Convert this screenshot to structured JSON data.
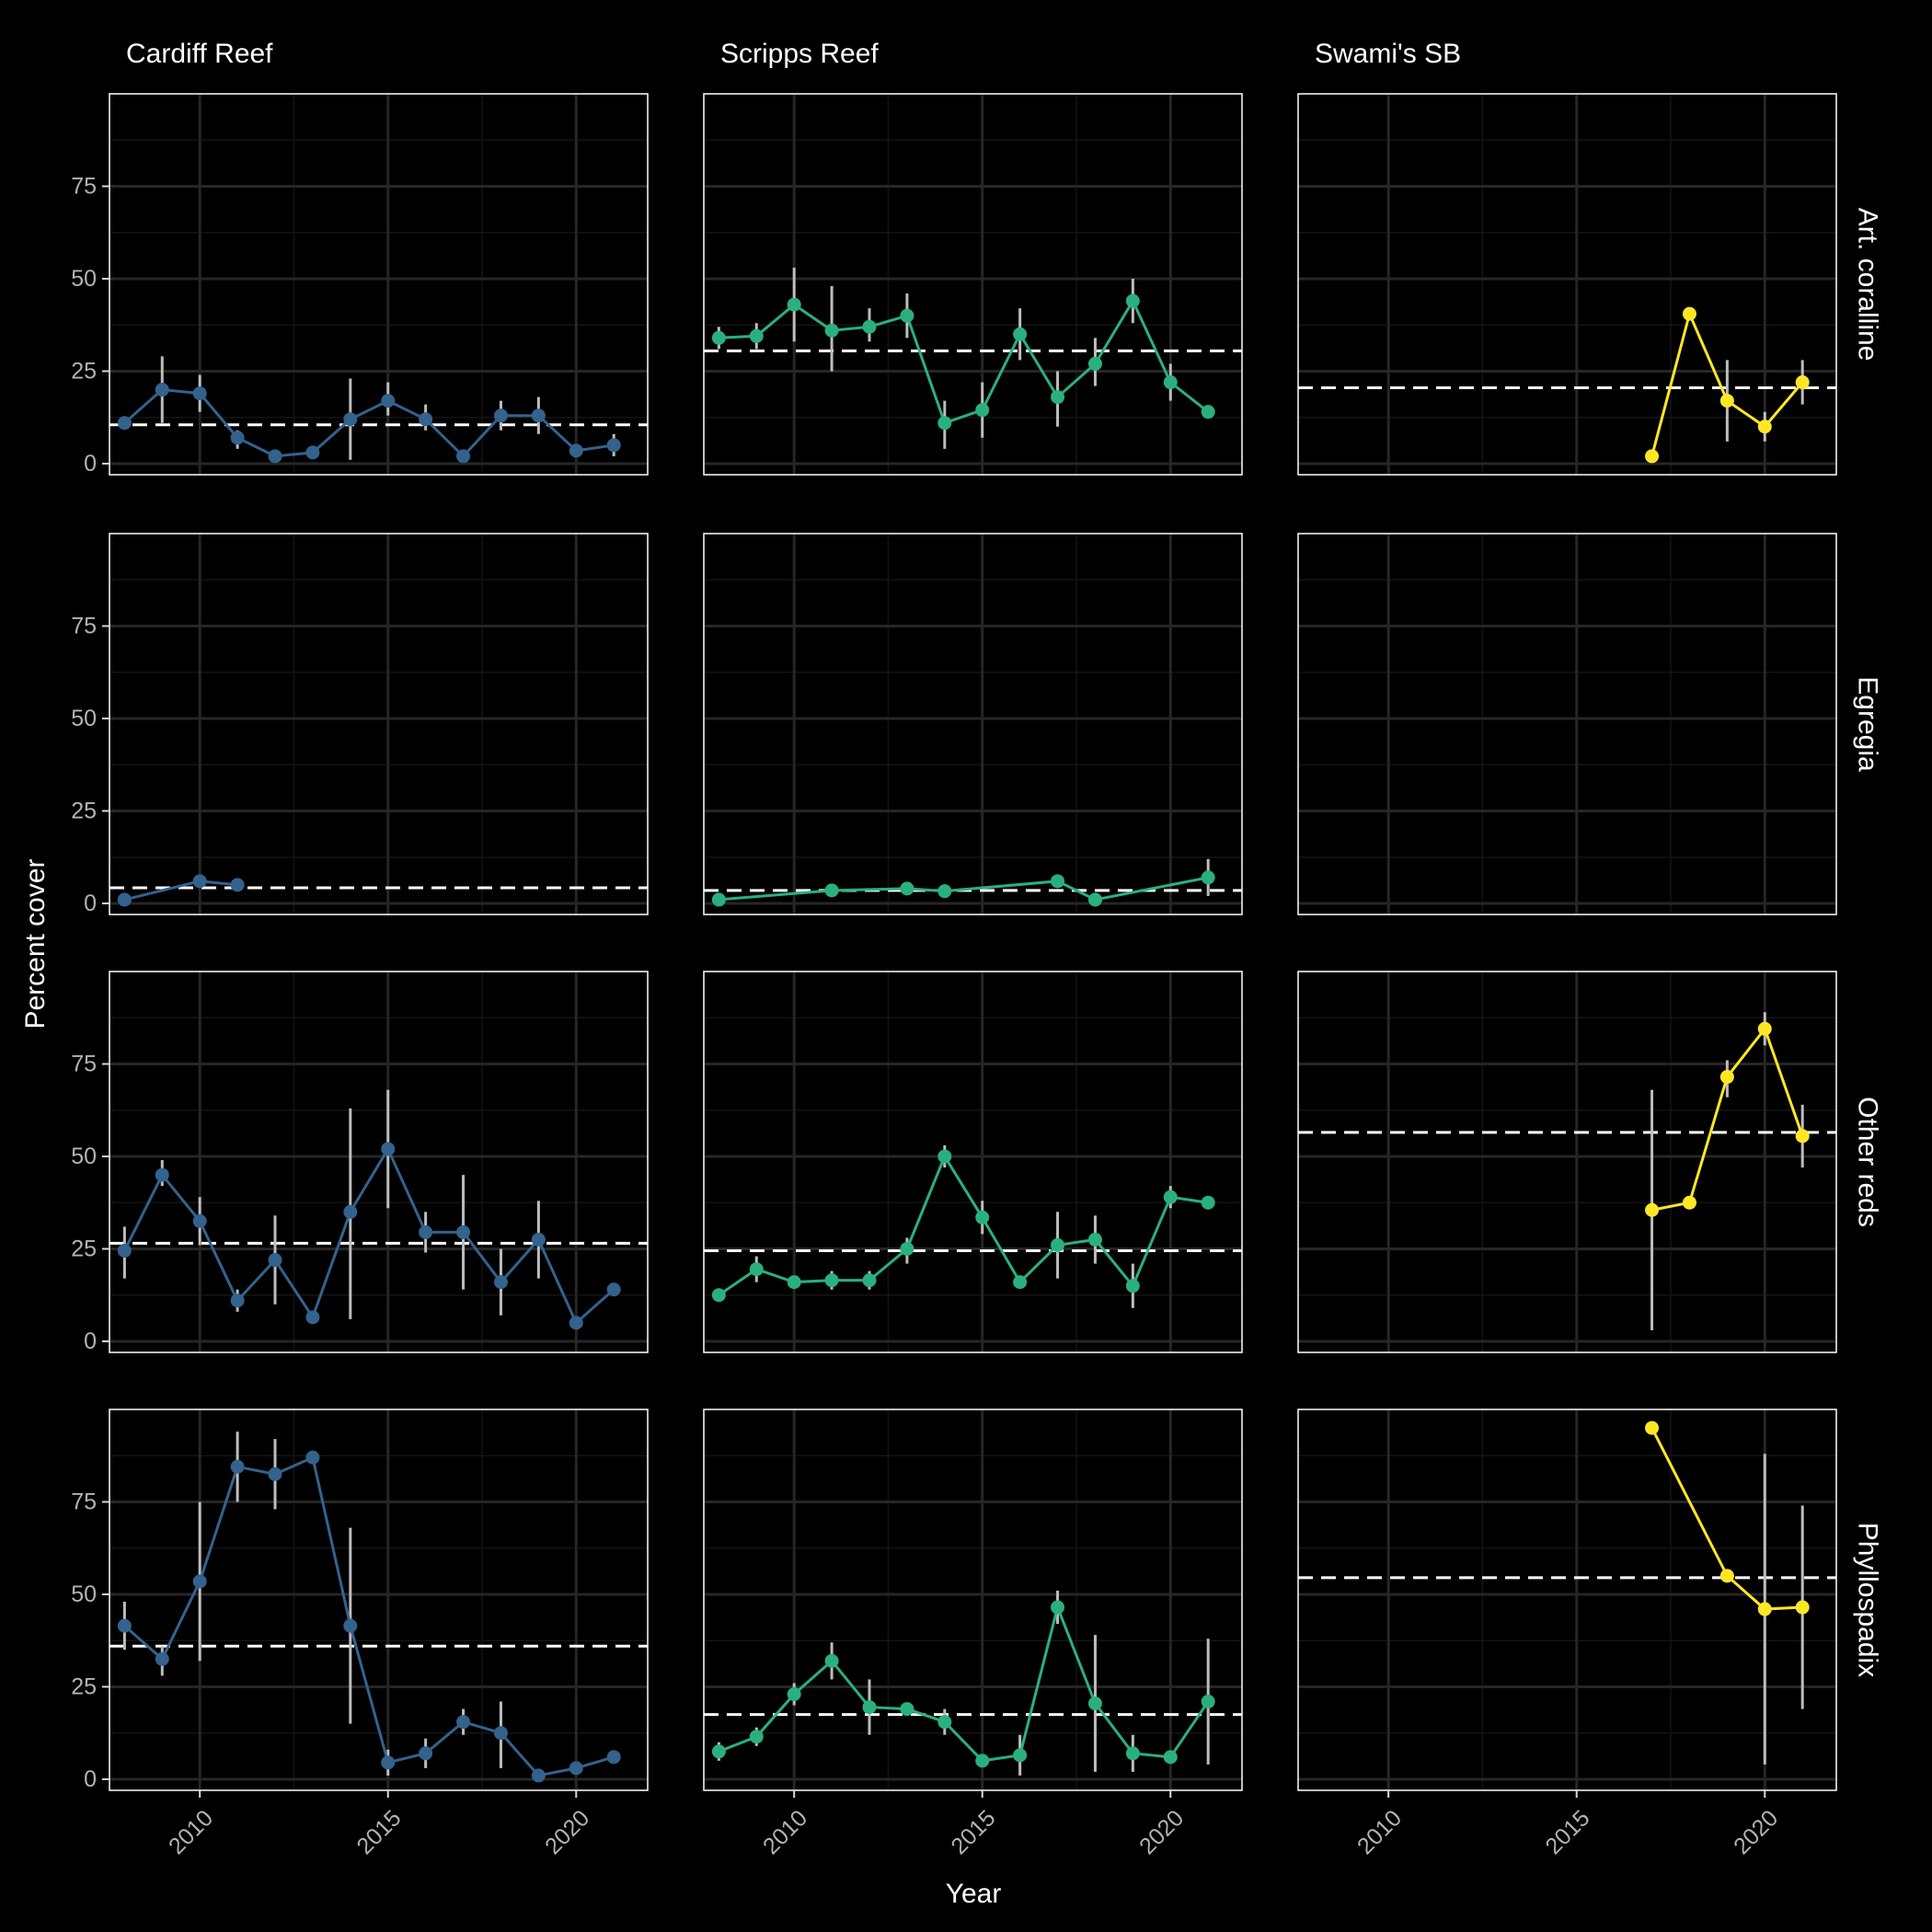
{
  "chart_data": {
    "type": "line",
    "xlabel": "Year",
    "ylabel": "Percent cover",
    "xlim": [
      2007.6,
      2021.9
    ],
    "ylim": [
      -3,
      100
    ],
    "x_ticks": [
      2010,
      2015,
      2020
    ],
    "y_ticks": [
      0,
      25,
      50,
      75
    ],
    "grid": true,
    "legend": "none",
    "columns": [
      "Cardiff Reef",
      "Scripps Reef",
      "Swami's SB"
    ],
    "rows": [
      "Art. coralline",
      "Egregia",
      "Other reds",
      "Phyllospadix"
    ],
    "colors": {
      "Cardiff Reef": "#33628d",
      "Scripps Reef": "#2ab07f",
      "Swami's SB": "#fde725"
    },
    "panels": [
      {
        "row": "Art. coralline",
        "col": "Cardiff Reef",
        "mean": 10.5,
        "points": [
          {
            "x": 2008,
            "y": 11,
            "lo": 11,
            "hi": 11
          },
          {
            "x": 2009,
            "y": 20,
            "lo": 11,
            "hi": 29
          },
          {
            "x": 2010,
            "y": 19,
            "lo": 14,
            "hi": 24
          },
          {
            "x": 2011,
            "y": 7,
            "lo": 4,
            "hi": 9
          },
          {
            "x": 2012,
            "y": 2,
            "lo": 2,
            "hi": 2
          },
          {
            "x": 2013,
            "y": 3,
            "lo": 3,
            "hi": 3
          },
          {
            "x": 2014,
            "y": 12,
            "lo": 1,
            "hi": 23
          },
          {
            "x": 2015,
            "y": 17,
            "lo": 13,
            "hi": 22
          },
          {
            "x": 2016,
            "y": 12,
            "lo": 9,
            "hi": 16
          },
          {
            "x": 2017,
            "y": 2,
            "lo": 2,
            "hi": 2
          },
          {
            "x": 2018,
            "y": 13,
            "lo": 9,
            "hi": 17
          },
          {
            "x": 2019,
            "y": 13,
            "lo": 8,
            "hi": 18
          },
          {
            "x": 2020,
            "y": 3.5,
            "lo": 2,
            "hi": 5
          },
          {
            "x": 2021,
            "y": 5,
            "lo": 2,
            "hi": 8
          }
        ]
      },
      {
        "row": "Art. coralline",
        "col": "Scripps Reef",
        "mean": 30.5,
        "points": [
          {
            "x": 2008,
            "y": 34,
            "lo": 31,
            "hi": 37
          },
          {
            "x": 2009,
            "y": 34.5,
            "lo": 31,
            "hi": 38
          },
          {
            "x": 2010,
            "y": 43,
            "lo": 33,
            "hi": 53
          },
          {
            "x": 2011,
            "y": 36,
            "lo": 25,
            "hi": 48
          },
          {
            "x": 2012,
            "y": 37,
            "lo": 33,
            "hi": 42
          },
          {
            "x": 2013,
            "y": 40,
            "lo": 34,
            "hi": 46
          },
          {
            "x": 2014,
            "y": 11,
            "lo": 4,
            "hi": 17
          },
          {
            "x": 2015,
            "y": 14.5,
            "lo": 7,
            "hi": 22
          },
          {
            "x": 2016,
            "y": 35,
            "lo": 28,
            "hi": 42
          },
          {
            "x": 2017,
            "y": 18,
            "lo": 10,
            "hi": 25
          },
          {
            "x": 2018,
            "y": 27,
            "lo": 21,
            "hi": 34
          },
          {
            "x": 2019,
            "y": 44,
            "lo": 38,
            "hi": 50
          },
          {
            "x": 2020,
            "y": 22,
            "lo": 17,
            "hi": 27
          },
          {
            "x": 2021,
            "y": 14,
            "lo": 13,
            "hi": 15
          }
        ]
      },
      {
        "row": "Art. coralline",
        "col": "Swami's SB",
        "mean": 20.5,
        "points": [
          {
            "x": 2017,
            "y": 2,
            "lo": 2,
            "hi": 2
          },
          {
            "x": 2018,
            "y": 40.5,
            "lo": 40.5,
            "hi": 40.5
          },
          {
            "x": 2019,
            "y": 17,
            "lo": 6,
            "hi": 28
          },
          {
            "x": 2020,
            "y": 10,
            "lo": 6,
            "hi": 14
          },
          {
            "x": 2021,
            "y": 22,
            "lo": 16,
            "hi": 28
          }
        ]
      },
      {
        "row": "Egregia",
        "col": "Cardiff Reef",
        "mean": 4.2,
        "points": [
          {
            "x": 2008,
            "y": 1,
            "lo": 1,
            "hi": 1
          },
          {
            "x": 2010,
            "y": 6,
            "lo": 6,
            "hi": 6
          },
          {
            "x": 2011,
            "y": 5,
            "lo": 5,
            "hi": 5
          }
        ]
      },
      {
        "row": "Egregia",
        "col": "Scripps Reef",
        "mean": 3.5,
        "points": [
          {
            "x": 2008,
            "y": 1,
            "lo": 1,
            "hi": 1
          },
          {
            "x": 2011,
            "y": 3.5,
            "lo": 3.5,
            "hi": 3.5
          },
          {
            "x": 2013,
            "y": 4,
            "lo": 4,
            "hi": 4
          },
          {
            "x": 2014,
            "y": 3.3,
            "lo": 3.3,
            "hi": 3.3
          },
          {
            "x": 2017,
            "y": 6,
            "lo": 6,
            "hi": 6
          },
          {
            "x": 2018,
            "y": 1,
            "lo": 1,
            "hi": 1
          },
          {
            "x": 2021,
            "y": 7,
            "lo": 2,
            "hi": 12
          }
        ]
      },
      {
        "row": "Egregia",
        "col": "Swami's SB",
        "mean": null,
        "points": []
      },
      {
        "row": "Other reds",
        "col": "Cardiff Reef",
        "mean": 26.5,
        "points": [
          {
            "x": 2008,
            "y": 24.5,
            "lo": 17,
            "hi": 31
          },
          {
            "x": 2009,
            "y": 45,
            "lo": 42,
            "hi": 49
          },
          {
            "x": 2010,
            "y": 32.5,
            "lo": 26,
            "hi": 39
          },
          {
            "x": 2011,
            "y": 11,
            "lo": 8,
            "hi": 14
          },
          {
            "x": 2012,
            "y": 22,
            "lo": 10,
            "hi": 34
          },
          {
            "x": 2013,
            "y": 6.5,
            "lo": 5,
            "hi": 8
          },
          {
            "x": 2014,
            "y": 35,
            "lo": 6,
            "hi": 63
          },
          {
            "x": 2015,
            "y": 52,
            "lo": 36,
            "hi": 68
          },
          {
            "x": 2016,
            "y": 29.5,
            "lo": 24,
            "hi": 35
          },
          {
            "x": 2017,
            "y": 29.5,
            "lo": 14,
            "hi": 45
          },
          {
            "x": 2018,
            "y": 16,
            "lo": 7,
            "hi": 25
          },
          {
            "x": 2019,
            "y": 27.5,
            "lo": 17,
            "hi": 38
          },
          {
            "x": 2020,
            "y": 5,
            "lo": 5,
            "hi": 5
          },
          {
            "x": 2021,
            "y": 14,
            "lo": 14,
            "hi": 14
          }
        ]
      },
      {
        "row": "Other reds",
        "col": "Scripps Reef",
        "mean": 24.5,
        "points": [
          {
            "x": 2008,
            "y": 12.5,
            "lo": 11,
            "hi": 14
          },
          {
            "x": 2009,
            "y": 19.5,
            "lo": 16,
            "hi": 23
          },
          {
            "x": 2010,
            "y": 16,
            "lo": 16,
            "hi": 16
          },
          {
            "x": 2011,
            "y": 16.5,
            "lo": 14,
            "hi": 19
          },
          {
            "x": 2012,
            "y": 16.5,
            "lo": 14,
            "hi": 19
          },
          {
            "x": 2013,
            "y": 25,
            "lo": 21,
            "hi": 28
          },
          {
            "x": 2014,
            "y": 50,
            "lo": 47,
            "hi": 53
          },
          {
            "x": 2015,
            "y": 33.5,
            "lo": 29,
            "hi": 38
          },
          {
            "x": 2016,
            "y": 16,
            "lo": 16,
            "hi": 16
          },
          {
            "x": 2017,
            "y": 26,
            "lo": 17,
            "hi": 35
          },
          {
            "x": 2018,
            "y": 27.5,
            "lo": 21,
            "hi": 34
          },
          {
            "x": 2019,
            "y": 15,
            "lo": 9,
            "hi": 21
          },
          {
            "x": 2020,
            "y": 39,
            "lo": 36,
            "hi": 42
          },
          {
            "x": 2021,
            "y": 37.5,
            "lo": 37.5,
            "hi": 37.5
          }
        ]
      },
      {
        "row": "Other reds",
        "col": "Swami's SB",
        "mean": 56.5,
        "points": [
          {
            "x": 2017,
            "y": 35.5,
            "lo": 3,
            "hi": 68
          },
          {
            "x": 2018,
            "y": 37.5,
            "lo": 37.5,
            "hi": 37.5
          },
          {
            "x": 2019,
            "y": 71.5,
            "lo": 66,
            "hi": 76
          },
          {
            "x": 2020,
            "y": 84.5,
            "lo": 80,
            "hi": 89
          },
          {
            "x": 2021,
            "y": 55.5,
            "lo": 47,
            "hi": 64
          }
        ]
      },
      {
        "row": "Phyllospadix",
        "col": "Cardiff Reef",
        "mean": 36,
        "points": [
          {
            "x": 2008,
            "y": 41.5,
            "lo": 35,
            "hi": 48
          },
          {
            "x": 2009,
            "y": 32.5,
            "lo": 28,
            "hi": 36
          },
          {
            "x": 2010,
            "y": 53.5,
            "lo": 32,
            "hi": 75
          },
          {
            "x": 2011,
            "y": 84.5,
            "lo": 75,
            "hi": 94
          },
          {
            "x": 2012,
            "y": 82.5,
            "lo": 73,
            "hi": 92
          },
          {
            "x": 2013,
            "y": 87,
            "lo": 87,
            "hi": 87
          },
          {
            "x": 2014,
            "y": 41.5,
            "lo": 15,
            "hi": 68
          },
          {
            "x": 2015,
            "y": 4.5,
            "lo": 1,
            "hi": 8
          },
          {
            "x": 2016,
            "y": 7,
            "lo": 3,
            "hi": 11
          },
          {
            "x": 2017,
            "y": 15.5,
            "lo": 12,
            "hi": 19
          },
          {
            "x": 2018,
            "y": 12.5,
            "lo": 3,
            "hi": 21
          },
          {
            "x": 2019,
            "y": 1,
            "lo": 1,
            "hi": 1
          },
          {
            "x": 2020,
            "y": 3,
            "lo": 3,
            "hi": 3
          },
          {
            "x": 2021,
            "y": 6,
            "lo": 6,
            "hi": 6
          }
        ]
      },
      {
        "row": "Phyllospadix",
        "col": "Scripps Reef",
        "mean": 17.5,
        "points": [
          {
            "x": 2008,
            "y": 7.5,
            "lo": 5,
            "hi": 10
          },
          {
            "x": 2009,
            "y": 11.5,
            "lo": 9,
            "hi": 14
          },
          {
            "x": 2010,
            "y": 23,
            "lo": 20,
            "hi": 26
          },
          {
            "x": 2011,
            "y": 32,
            "lo": 27,
            "hi": 37
          },
          {
            "x": 2012,
            "y": 19.5,
            "lo": 12,
            "hi": 27
          },
          {
            "x": 2013,
            "y": 19,
            "lo": 19,
            "hi": 19
          },
          {
            "x": 2014,
            "y": 15.5,
            "lo": 12,
            "hi": 19
          },
          {
            "x": 2015,
            "y": 5,
            "lo": 5,
            "hi": 5
          },
          {
            "x": 2016,
            "y": 6.5,
            "lo": 1,
            "hi": 12
          },
          {
            "x": 2017,
            "y": 46.5,
            "lo": 42,
            "hi": 51
          },
          {
            "x": 2018,
            "y": 20.5,
            "lo": 2,
            "hi": 39
          },
          {
            "x": 2019,
            "y": 7,
            "lo": 2,
            "hi": 12
          },
          {
            "x": 2020,
            "y": 6,
            "lo": 6,
            "hi": 6
          },
          {
            "x": 2021,
            "y": 21,
            "lo": 4,
            "hi": 38
          }
        ]
      },
      {
        "row": "Phyllospadix",
        "col": "Swami's SB",
        "mean": 54.5,
        "points": [
          {
            "x": 2017,
            "y": 95,
            "lo": 95,
            "hi": 95
          },
          {
            "x": 2019,
            "y": 55,
            "lo": 55,
            "hi": 55
          },
          {
            "x": 2020,
            "y": 46,
            "lo": 4,
            "hi": 88
          },
          {
            "x": 2021,
            "y": 46.5,
            "lo": 19,
            "hi": 74
          }
        ]
      }
    ]
  }
}
